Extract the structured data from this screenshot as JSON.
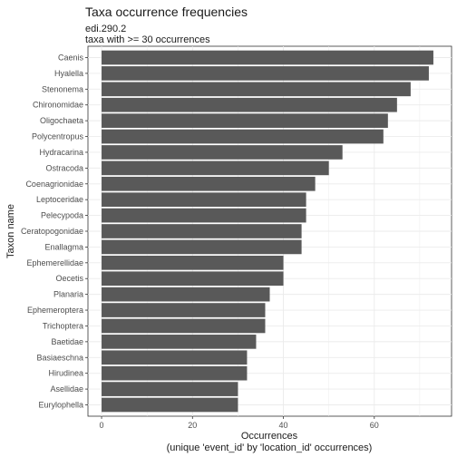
{
  "chart_data": {
    "type": "bar",
    "orientation": "horizontal",
    "title": "Taxa occurrence frequencies",
    "subtitle_lines": [
      "edi.290.2",
      "taxa with >= 30 occurrences"
    ],
    "xlabel_lines": [
      "Occurrences",
      "(unique 'event_id' by 'location_id' occurrences)"
    ],
    "ylabel": "Taxon name",
    "xlim": [
      -3,
      77
    ],
    "xticks": [
      0,
      20,
      40,
      60
    ],
    "grid": true,
    "bar_color": "#595959",
    "categories": [
      "Caenis",
      "Hyalella",
      "Stenonema",
      "Chironomidae",
      "Oligochaeta",
      "Polycentropus",
      "Hydracarina",
      "Ostracoda",
      "Coenagrionidae",
      "Leptoceridae",
      "Pelecypoda",
      "Ceratopogonidae",
      "Enallagma",
      "Ephemerellidae",
      "Oecetis",
      "Planaria",
      "Ephemeroptera",
      "Trichoptera",
      "Baetidae",
      "Basiaeschna",
      "Hirudinea",
      "Asellidae",
      "Eurylophella"
    ],
    "values": [
      73,
      72,
      68,
      65,
      63,
      62,
      53,
      50,
      47,
      45,
      45,
      44,
      44,
      40,
      40,
      37,
      36,
      36,
      34,
      32,
      32,
      30,
      30
    ]
  }
}
